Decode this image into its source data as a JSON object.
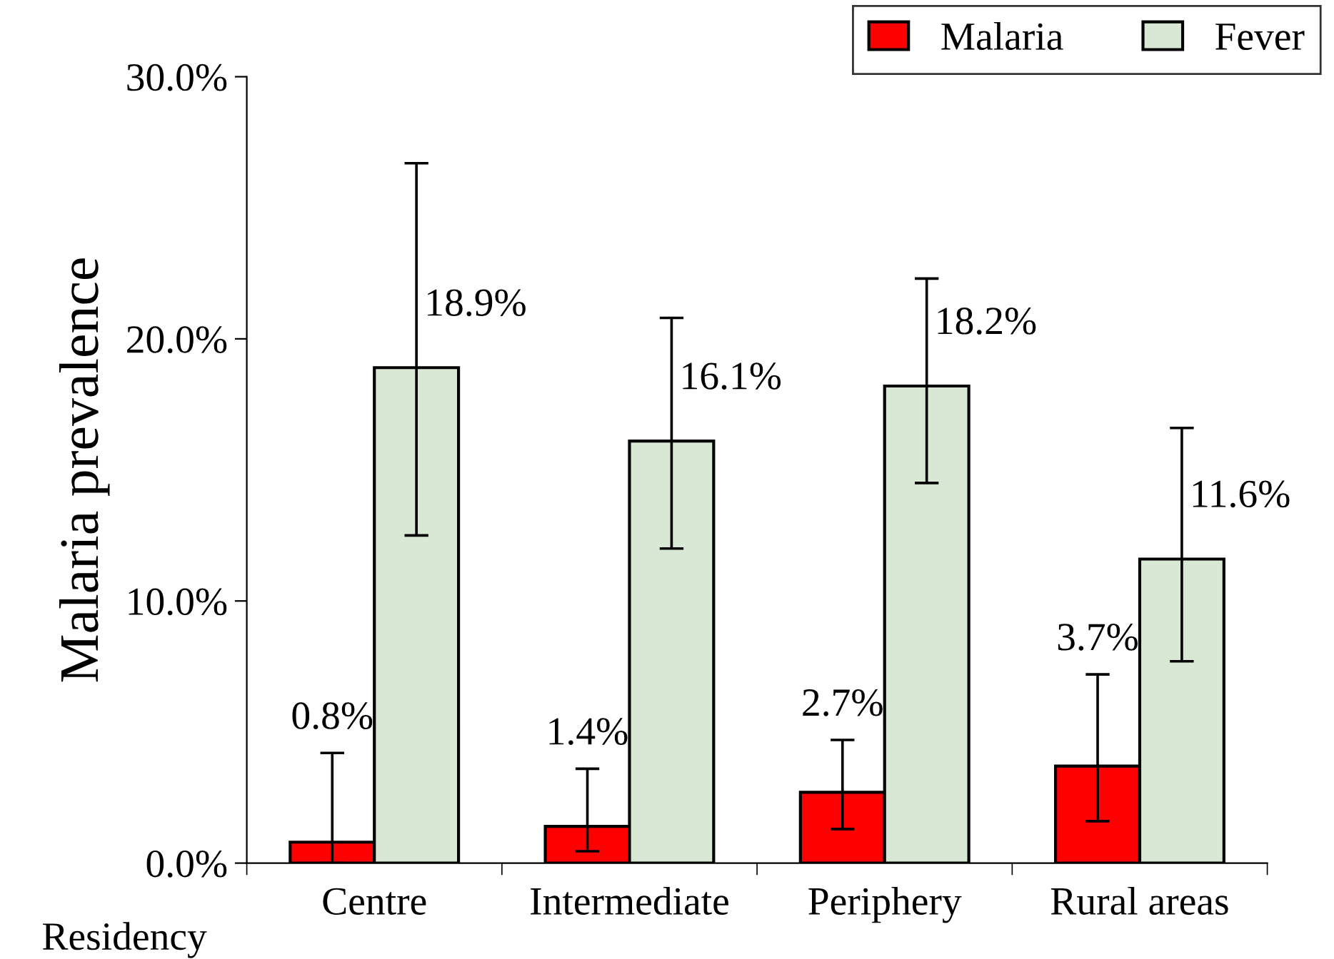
{
  "chart_data": {
    "type": "bar",
    "ylabel": "Malaria prevalence",
    "xlabel": "Residency",
    "categories": [
      "Centre",
      "Intermediate",
      "Periphery",
      "Rural areas"
    ],
    "series": [
      {
        "name": "Malaria",
        "color": "#ff0000",
        "values": [
          0.8,
          1.4,
          2.7,
          3.7
        ],
        "errors": [
          [
            0.0,
            4.2
          ],
          [
            0.45,
            3.6
          ],
          [
            1.3,
            4.7
          ],
          [
            1.6,
            7.2
          ]
        ],
        "value_labels": [
          "0.8%",
          "1.4%",
          "2.7%",
          "3.7%"
        ]
      },
      {
        "name": "Fever",
        "color": "#d8e8d4",
        "values": [
          18.9,
          16.1,
          18.2,
          11.6
        ],
        "errors": [
          [
            12.5,
            26.7
          ],
          [
            12.0,
            20.8
          ],
          [
            14.5,
            22.3
          ],
          [
            7.7,
            16.6
          ]
        ],
        "value_labels": [
          "18.9%",
          "16.1%",
          "18.2%",
          "11.6%"
        ]
      }
    ],
    "ylim": [
      0,
      30
    ],
    "yticks": [
      {
        "value": 0,
        "label": "0.0%"
      },
      {
        "value": 10,
        "label": "10.0%"
      },
      {
        "value": 20,
        "label": "20.0%"
      },
      {
        "value": 30,
        "label": "30.0%"
      }
    ],
    "grid": false,
    "legend": "top right"
  }
}
